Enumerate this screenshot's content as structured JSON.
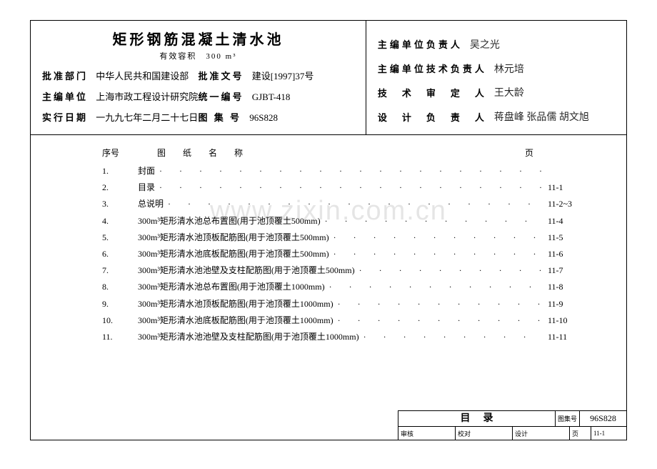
{
  "title": "矩形钢筋混凝土清水池",
  "subtitle": "有效容积　300 m³",
  "info": {
    "approve_dept_label": "批准部门",
    "approve_dept": "中华人民共和国建设部",
    "approve_doc_label": "批准文号",
    "approve_doc": "建设[1997]37号",
    "editor_unit_label": "主编单位",
    "editor_unit": "上海市政工程设计研究院",
    "unified_no_label": "统一编号",
    "unified_no": "GJBT-418",
    "effective_date_label": "实行日期",
    "effective_date": "一九九七年二月二十七日",
    "atlas_no_label": "图 集 号",
    "atlas_no": "96S828"
  },
  "rightside": {
    "r1_label": "主编单位负责人",
    "r1_sig": "吴之光",
    "r2_label": "主编单位技术负责人",
    "r2_sig": "林元培",
    "r3_label": "技　术　审　定　人",
    "r3_sig": "王大龄",
    "r4_label": "设　计　负　责　人",
    "r4_sig": "蒋盘峰 张品儒 胡文旭"
  },
  "toc_header": {
    "num": "序号",
    "name": "图　纸　名　称",
    "page": "页"
  },
  "toc": [
    {
      "n": "1.",
      "name": "封面",
      "page": ""
    },
    {
      "n": "2.",
      "name": "目录",
      "page": "11-1"
    },
    {
      "n": "3.",
      "name": "总说明",
      "page": "11-2~3"
    },
    {
      "n": "4.",
      "name": "300m³矩形清水池总布置图(用于池顶覆土500mm)",
      "page": "11-4"
    },
    {
      "n": "5.",
      "name": "300m³矩形清水池顶板配筋图(用于池顶覆土500mm)",
      "page": "11-5"
    },
    {
      "n": "6.",
      "name": "300m³矩形清水池底板配筋图(用于池顶覆土500mm)",
      "page": "11-6"
    },
    {
      "n": "7.",
      "name": "300m³矩形清水池池壁及支柱配筋图(用于池顶覆土500mm)",
      "page": "11-7"
    },
    {
      "n": "8.",
      "name": "300m³矩形清水池总布置图(用于池顶覆土1000mm)",
      "page": "11-8"
    },
    {
      "n": "9.",
      "name": "300m³矩形清水池顶板配筋图(用于池顶覆土1000mm)",
      "page": "11-9"
    },
    {
      "n": "10.",
      "name": "300m³矩形清水池底板配筋图(用于池顶覆土1000mm)",
      "page": "11-10"
    },
    {
      "n": "11.",
      "name": "300m³矩形清水池池壁及支柱配筋图(用于池顶覆土1000mm)",
      "page": "11-11"
    }
  ],
  "watermark": "www.zixin.com.cn",
  "footer": {
    "title": "目录",
    "code_label": "图集号",
    "code": "96S828",
    "cells": [
      "审核",
      "校对",
      "设计",
      "页",
      "11-1"
    ]
  }
}
